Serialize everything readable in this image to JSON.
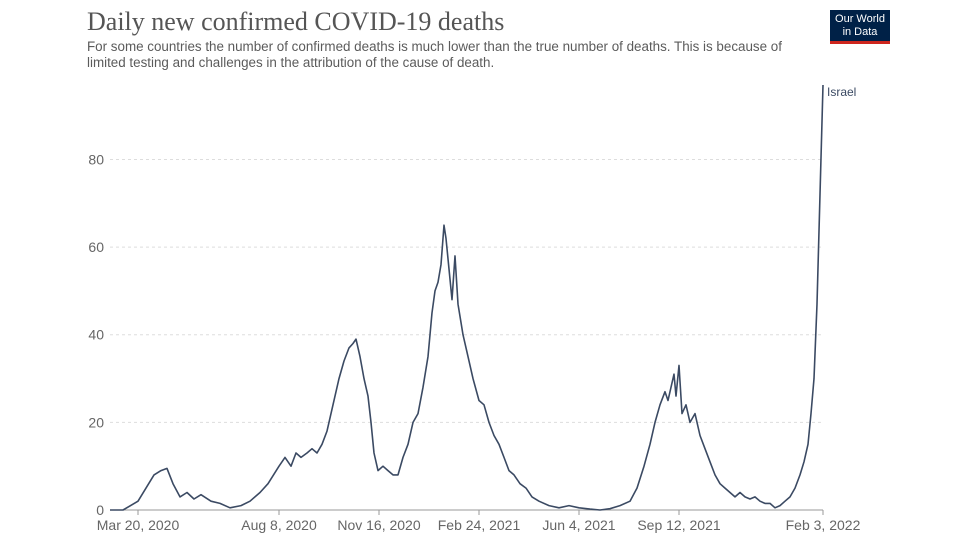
{
  "header": {
    "title": "Daily new confirmed COVID-19 deaths",
    "subtitle": "For some countries the number of confirmed deaths is much lower than the true number of deaths. This is because of limited testing and challenges in the attribution of the cause of death.",
    "logo_line1": "Our World",
    "logo_line2": "in Data"
  },
  "colors": {
    "series": "#3b4a63",
    "logo_bg": "#002147",
    "logo_accent": "#ce261e"
  },
  "chart_data": {
    "type": "line",
    "title": "Daily new confirmed COVID-19 deaths",
    "xlabel": "",
    "ylabel": "",
    "ylim": [
      0,
      97
    ],
    "yticks": [
      0,
      20,
      40,
      60,
      80
    ],
    "grid": true,
    "xticks": [
      "Mar 20, 2020",
      "Aug 8, 2020",
      "Nov 16, 2020",
      "Feb 24, 2021",
      "Jun 4, 2021",
      "Sep 12, 2021",
      "Feb 3, 2022"
    ],
    "series": [
      {
        "name": "Israel",
        "points": [
          [
            "2020-02-21",
            0
          ],
          [
            "2020-03-05",
            0
          ],
          [
            "2020-03-20",
            2
          ],
          [
            "2020-03-28",
            5
          ],
          [
            "2020-04-05",
            8
          ],
          [
            "2020-04-12",
            9
          ],
          [
            "2020-04-18",
            9.5
          ],
          [
            "2020-04-24",
            6
          ],
          [
            "2020-05-01",
            3
          ],
          [
            "2020-05-08",
            4
          ],
          [
            "2020-05-15",
            2.5
          ],
          [
            "2020-05-22",
            3.5
          ],
          [
            "2020-06-01",
            2
          ],
          [
            "2020-06-10",
            1.5
          ],
          [
            "2020-06-20",
            0.5
          ],
          [
            "2020-07-01",
            1
          ],
          [
            "2020-07-10",
            2
          ],
          [
            "2020-07-20",
            4
          ],
          [
            "2020-07-28",
            6
          ],
          [
            "2020-08-08",
            10
          ],
          [
            "2020-08-14",
            12
          ],
          [
            "2020-08-20",
            10
          ],
          [
            "2020-08-25",
            13
          ],
          [
            "2020-08-30",
            12
          ],
          [
            "2020-09-05",
            13
          ],
          [
            "2020-09-10",
            14
          ],
          [
            "2020-09-15",
            13
          ],
          [
            "2020-09-20",
            15
          ],
          [
            "2020-09-25",
            18
          ],
          [
            "2020-10-01",
            24
          ],
          [
            "2020-10-07",
            30
          ],
          [
            "2020-10-12",
            34
          ],
          [
            "2020-10-17",
            37
          ],
          [
            "2020-10-21",
            38
          ],
          [
            "2020-10-24",
            39
          ],
          [
            "2020-10-28",
            35
          ],
          [
            "2020-11-01",
            30
          ],
          [
            "2020-11-05",
            26
          ],
          [
            "2020-11-08",
            20
          ],
          [
            "2020-11-11",
            13
          ],
          [
            "2020-11-15",
            9
          ],
          [
            "2020-11-20",
            10
          ],
          [
            "2020-11-25",
            9
          ],
          [
            "2020-11-30",
            8
          ],
          [
            "2020-12-05",
            8
          ],
          [
            "2020-12-10",
            12
          ],
          [
            "2020-12-15",
            15
          ],
          [
            "2020-12-20",
            20
          ],
          [
            "2020-12-25",
            22
          ],
          [
            "2020-12-30",
            28
          ],
          [
            "2021-01-04",
            35
          ],
          [
            "2021-01-08",
            45
          ],
          [
            "2021-01-11",
            50
          ],
          [
            "2021-01-14",
            52
          ],
          [
            "2021-01-17",
            56
          ],
          [
            "2021-01-20",
            65
          ],
          [
            "2021-01-22",
            62
          ],
          [
            "2021-01-25",
            55
          ],
          [
            "2021-01-28",
            48
          ],
          [
            "2021-01-31",
            58
          ],
          [
            "2021-02-03",
            47
          ],
          [
            "2021-02-08",
            40
          ],
          [
            "2021-02-13",
            35
          ],
          [
            "2021-02-18",
            30
          ],
          [
            "2021-02-24",
            25
          ],
          [
            "2021-03-01",
            24
          ],
          [
            "2021-03-06",
            20
          ],
          [
            "2021-03-11",
            17
          ],
          [
            "2021-03-16",
            15
          ],
          [
            "2021-03-21",
            12
          ],
          [
            "2021-03-26",
            9
          ],
          [
            "2021-03-31",
            8
          ],
          [
            "2021-04-06",
            6
          ],
          [
            "2021-04-12",
            5
          ],
          [
            "2021-04-18",
            3
          ],
          [
            "2021-04-25",
            2
          ],
          [
            "2021-05-05",
            1
          ],
          [
            "2021-05-15",
            0.5
          ],
          [
            "2021-05-25",
            1
          ],
          [
            "2021-06-04",
            0.5
          ],
          [
            "2021-06-15",
            0.2
          ],
          [
            "2021-06-25",
            0
          ],
          [
            "2021-07-05",
            0.3
          ],
          [
            "2021-07-15",
            1
          ],
          [
            "2021-07-25",
            2
          ],
          [
            "2021-08-01",
            5
          ],
          [
            "2021-08-08",
            10
          ],
          [
            "2021-08-14",
            15
          ],
          [
            "2021-08-19",
            20
          ],
          [
            "2021-08-24",
            24
          ],
          [
            "2021-08-29",
            27
          ],
          [
            "2021-09-01",
            25
          ],
          [
            "2021-09-04",
            28
          ],
          [
            "2021-09-07",
            31
          ],
          [
            "2021-09-09",
            26
          ],
          [
            "2021-09-12",
            33
          ],
          [
            "2021-09-15",
            22
          ],
          [
            "2021-09-19",
            24
          ],
          [
            "2021-09-23",
            20
          ],
          [
            "2021-09-28",
            22
          ],
          [
            "2021-10-03",
            17
          ],
          [
            "2021-10-08",
            14
          ],
          [
            "2021-10-13",
            11
          ],
          [
            "2021-10-18",
            8
          ],
          [
            "2021-10-23",
            6
          ],
          [
            "2021-10-28",
            5
          ],
          [
            "2021-11-02",
            4
          ],
          [
            "2021-11-07",
            3
          ],
          [
            "2021-11-12",
            4
          ],
          [
            "2021-11-17",
            3
          ],
          [
            "2021-11-22",
            2.5
          ],
          [
            "2021-11-27",
            3
          ],
          [
            "2021-12-02",
            2
          ],
          [
            "2021-12-07",
            1.5
          ],
          [
            "2021-12-12",
            1.5
          ],
          [
            "2021-12-17",
            0.5
          ],
          [
            "2021-12-22",
            1
          ],
          [
            "2021-12-27",
            2
          ],
          [
            "2022-01-01",
            3
          ],
          [
            "2022-01-06",
            5
          ],
          [
            "2022-01-11",
            8
          ],
          [
            "2022-01-15",
            11
          ],
          [
            "2022-01-19",
            15
          ],
          [
            "2022-01-22",
            22
          ],
          [
            "2022-01-25",
            30
          ],
          [
            "2022-01-28",
            47
          ],
          [
            "2022-01-31",
            72
          ],
          [
            "2022-02-03",
            97
          ]
        ]
      }
    ]
  }
}
